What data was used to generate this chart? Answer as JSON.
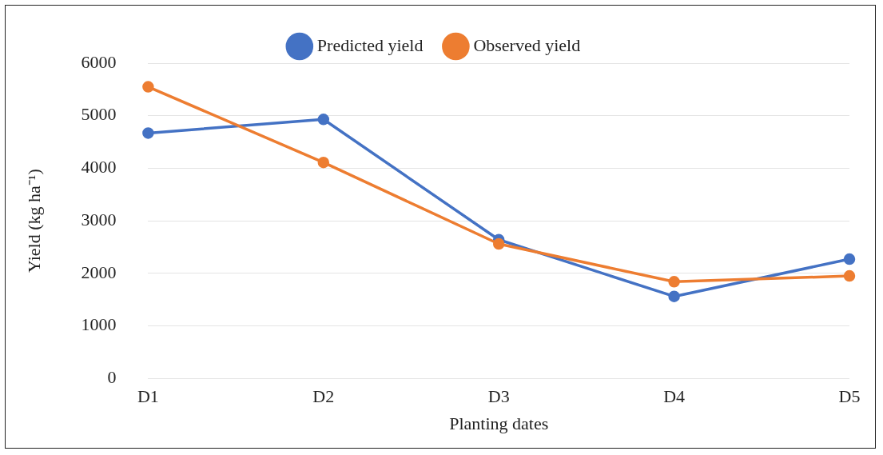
{
  "chart_data": {
    "type": "line",
    "xlabel": "Planting dates",
    "ylabel": "Yield (kg ha⁻¹)",
    "categories": [
      "D1",
      "D2",
      "D3",
      "D4",
      "D5"
    ],
    "series": [
      {
        "name": "Predicted yield",
        "color": "#4472c4",
        "values": [
          4670,
          4930,
          2640,
          1560,
          2270
        ]
      },
      {
        "name": "Observed yield",
        "color": "#ed7d31",
        "values": [
          5550,
          4110,
          2560,
          1840,
          1950
        ]
      }
    ],
    "ylim": [
      0,
      6000
    ],
    "yticks": [
      0,
      1000,
      2000,
      3000,
      4000,
      5000,
      6000
    ],
    "grid": "y",
    "legend": "top",
    "marker": "circle",
    "line_style": "solid"
  }
}
